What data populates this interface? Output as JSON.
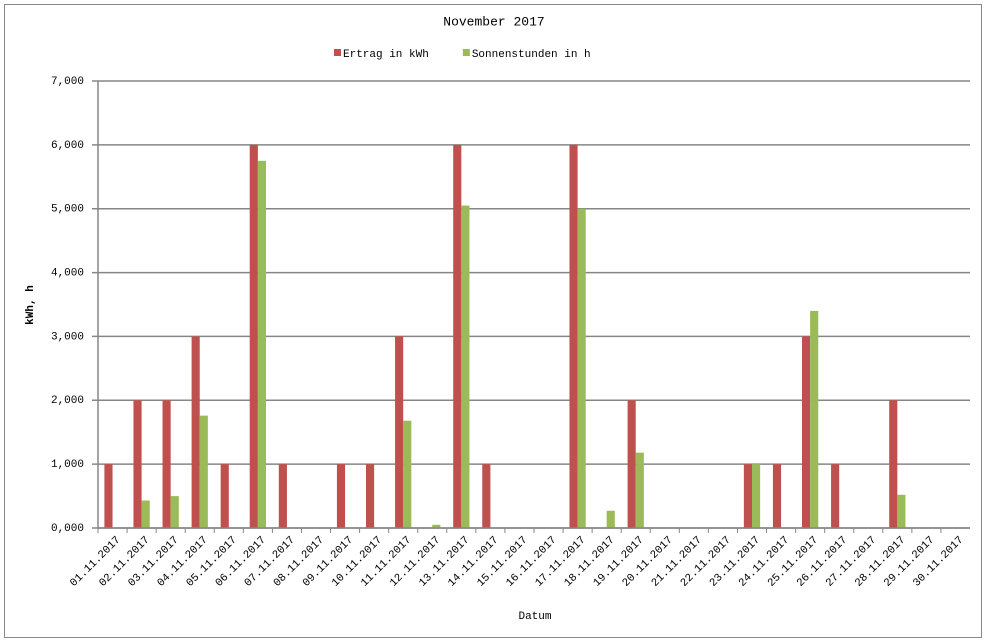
{
  "chart_data": {
    "type": "bar",
    "title": "November 2017",
    "x_label": "Datum",
    "y_label": "kWh, h",
    "categories": [
      "01.11.2017",
      "02.11.2017",
      "03.11.2017",
      "04.11.2017",
      "05.11.2017",
      "06.11.2017",
      "07.11.2017",
      "08.11.2017",
      "09.11.2017",
      "10.11.2017",
      "11.11.2017",
      "12.11.2017",
      "13.11.2017",
      "14.11.2017",
      "15.11.2017",
      "16.11.2017",
      "17.11.2017",
      "18.11.2017",
      "19.11.2017",
      "20.11.2017",
      "21.11.2017",
      "22.11.2017",
      "23.11.2017",
      "24.11.2017",
      "25.11.2017",
      "26.11.2017",
      "27.11.2017",
      "28.11.2017",
      "29.11.2017",
      "30.11.2017"
    ],
    "series": [
      {
        "name": "Ertrag in kWh",
        "color": "#c0504d",
        "values": [
          1,
          2,
          2,
          3,
          1,
          6,
          1,
          0,
          1,
          1,
          3,
          0,
          6,
          1,
          0,
          0,
          6,
          0,
          2,
          0,
          0,
          0,
          1,
          1,
          3,
          1,
          0,
          2,
          0,
          0
        ]
      },
      {
        "name": "Sonnenstunden in h",
        "color": "#9bbb59",
        "values": [
          0,
          0.43,
          0.5,
          1.76,
          0,
          5.75,
          0,
          0,
          0,
          0,
          1.68,
          0.05,
          5.05,
          0,
          0,
          0,
          5.0,
          0.27,
          1.18,
          0,
          0,
          0,
          1.0,
          0,
          3.4,
          0,
          0,
          0.52,
          0,
          0
        ]
      }
    ],
    "ylim": [
      0,
      7
    ],
    "yticks": [
      {
        "value": 0,
        "label": "0,000"
      },
      {
        "value": 1,
        "label": "1,000"
      },
      {
        "value": 2,
        "label": "2,000"
      },
      {
        "value": 3,
        "label": "3,000"
      },
      {
        "value": 4,
        "label": "4,000"
      },
      {
        "value": 5,
        "label": "5,000"
      },
      {
        "value": 6,
        "label": "6,000"
      },
      {
        "value": 7,
        "label": "7,000"
      }
    ],
    "grid": true
  }
}
